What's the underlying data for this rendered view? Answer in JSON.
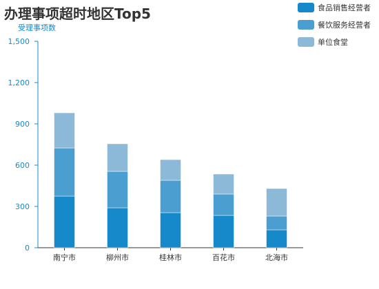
{
  "chart_data": {
    "type": "bar",
    "stacked": true,
    "title": "办理事项超时地区Top5",
    "ylabel": "受理事项数",
    "xlabel": "",
    "categories": [
      "南宁市",
      "柳州市",
      "桂林市",
      "百花市",
      "北海市"
    ],
    "ylim": [
      0,
      1500
    ],
    "yticks": [
      0,
      300,
      600,
      900,
      1200,
      1500
    ],
    "ytick_labels": [
      "0",
      "300",
      "600",
      "900",
      "1,200",
      "1,500"
    ],
    "legend_position": "top-right",
    "grid": false,
    "series": [
      {
        "name": "食品销售经营者",
        "color": "#1589c9",
        "values": [
          375,
          290,
          255,
          235,
          130
        ]
      },
      {
        "name": "餐饮服务经营者",
        "color": "#4a9fd0",
        "values": [
          350,
          265,
          235,
          155,
          100
        ]
      },
      {
        "name": "单位食堂",
        "color": "#8db9d8",
        "values": [
          255,
          200,
          150,
          145,
          200
        ]
      }
    ]
  }
}
